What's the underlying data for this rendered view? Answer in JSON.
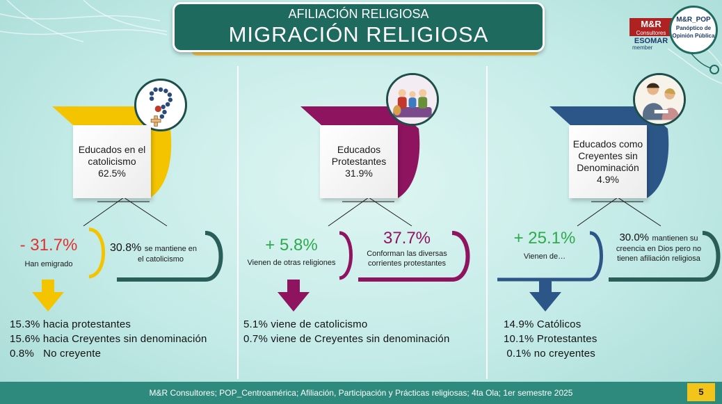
{
  "header": {
    "subtitle": "AFILIACIÓN RELIGIOSA",
    "title": "MIGRACIÓN RELIGIOSA"
  },
  "logos": {
    "mr_name": "M&R",
    "mr_sub": "Consultores",
    "esomar": "ESOMAR",
    "member": "member",
    "pop_name": "M&R_POP",
    "pop_line1": "Panóptico de",
    "pop_line2": "Opinión Pública"
  },
  "columns": [
    {
      "accent": "#f5c400",
      "icon": "rosary-icon",
      "category": [
        "Educados en el",
        "catolicismo",
        "62.5%"
      ],
      "left_pct": "- 31.7%",
      "left_label": "Han emigrado",
      "right_pct": "30.8%",
      "right_label_a": "se mantiene en",
      "right_label_b": "el catolicismo",
      "list": [
        "15.3% hacia protestantes",
        "15.6% hacia Creyentes sin denominación",
        "0.8%   No creyente"
      ]
    },
    {
      "accent": "#8e1460",
      "icon": "family-icon",
      "category": [
        "Educados",
        "Protestantes",
        "31.9%"
      ],
      "left_pct": "+ 5.8%",
      "left_label": "Vienen de otras religiones",
      "right_pct": "37.7%",
      "right_label_a": "Conforman las diversas",
      "right_label_b": "corrientes protestantes",
      "list": [
        "5.1% viene de catolicismo",
        "0.7% viene de Creyentes sin denominación"
      ]
    },
    {
      "accent": "#2d5688",
      "icon": "praying-people-icon",
      "category": [
        "Educados como",
        "Creyentes sin",
        "Denominación",
        "4.9%"
      ],
      "left_pct": "+ 25.1%",
      "left_label": "Vienen de…",
      "right_pct": "30.0%",
      "right_label_a": "mantienen su",
      "right_label_b": "creencia en Dios pero no",
      "right_label_c": "tienen afiliación religiosa",
      "list": [
        "14.9% Católicos",
        "10.1% Protestantes",
        " 0.1% no creyentes"
      ]
    }
  ],
  "footer": {
    "source": "M&R Consultores; POP_Centroamérica; Afiliación, Participación y Prácticas religiosas; 4ta Ola; 1er semestre 2025",
    "page": "5"
  }
}
